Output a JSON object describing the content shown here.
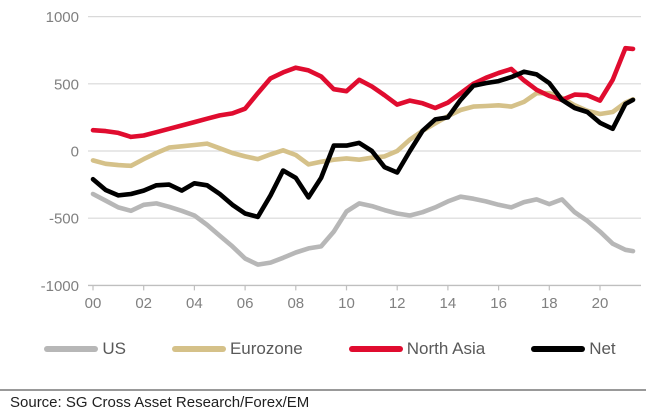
{
  "source": {
    "text": "Source: SG Cross Asset Research/Forex/EM"
  },
  "chart_data": {
    "type": "line",
    "title": "",
    "xlabel": "",
    "ylabel": "",
    "ylim": [
      -1000,
      1000
    ],
    "y_ticks": [
      1000,
      500,
      0,
      -500,
      -1000
    ],
    "y_tick_labels": [
      "1000",
      "500",
      "0",
      "-500",
      "-1000"
    ],
    "x_tick_positions": [
      0,
      2,
      4,
      6,
      8,
      10,
      12,
      14,
      16,
      18,
      20
    ],
    "x_tick_labels": [
      "00",
      "02",
      "04",
      "06",
      "08",
      "10",
      "12",
      "14",
      "16",
      "18",
      "20"
    ],
    "grid": "horizontal",
    "legend_position": "bottom",
    "x": [
      0,
      0.5,
      1,
      1.5,
      2,
      2.5,
      3,
      3.5,
      4,
      4.5,
      5,
      5.5,
      6,
      6.5,
      7,
      7.5,
      8,
      8.5,
      9,
      9.5,
      10,
      10.5,
      11,
      11.5,
      12,
      12.5,
      13,
      13.5,
      14,
      14.5,
      15,
      15.5,
      16,
      16.5,
      17,
      17.5,
      18,
      18.5,
      19,
      19.5,
      20,
      20.5,
      21,
      21.3
    ],
    "series": [
      {
        "name": "US",
        "color": "#b7b7b7",
        "values": [
          -320,
          -370,
          -420,
          -445,
          -400,
          -390,
          -415,
          -445,
          -480,
          -550,
          -630,
          -710,
          -800,
          -845,
          -830,
          -795,
          -755,
          -725,
          -710,
          -600,
          -450,
          -390,
          -410,
          -440,
          -465,
          -480,
          -455,
          -420,
          -375,
          -340,
          -355,
          -375,
          -400,
          -420,
          -380,
          -360,
          -395,
          -360,
          -455,
          -520,
          -600,
          -690,
          -735,
          -745
        ]
      },
      {
        "name": "Eurozone",
        "color": "#d5c189",
        "values": [
          -70,
          -95,
          -105,
          -110,
          -60,
          -15,
          25,
          35,
          45,
          55,
          20,
          -15,
          -40,
          -60,
          -25,
          5,
          -30,
          -100,
          -80,
          -65,
          -55,
          -65,
          -50,
          -40,
          0,
          85,
          150,
          205,
          260,
          305,
          330,
          335,
          340,
          330,
          365,
          430,
          430,
          395,
          340,
          300,
          275,
          290,
          360,
          385
        ]
      },
      {
        "name": "North Asia",
        "color": "#e00c2f",
        "values": [
          155,
          148,
          135,
          105,
          115,
          140,
          165,
          190,
          215,
          240,
          265,
          280,
          315,
          430,
          540,
          585,
          620,
          600,
          555,
          460,
          445,
          530,
          480,
          415,
          345,
          375,
          355,
          320,
          360,
          430,
          500,
          545,
          580,
          610,
          525,
          455,
          410,
          380,
          420,
          415,
          375,
          530,
          765,
          760
        ]
      },
      {
        "name": "Net",
        "color": "#000000",
        "values": [
          -210,
          -290,
          -330,
          -320,
          -295,
          -255,
          -250,
          -295,
          -240,
          -255,
          -320,
          -400,
          -465,
          -490,
          -330,
          -145,
          -200,
          -345,
          -200,
          40,
          40,
          60,
          0,
          -120,
          -160,
          0,
          150,
          235,
          250,
          380,
          485,
          505,
          520,
          550,
          590,
          570,
          505,
          380,
          320,
          290,
          210,
          165,
          350,
          380
        ]
      }
    ]
  },
  "style": {
    "grid_color": "#d9d9d9",
    "axis_color": "#bfbfbf",
    "tick_label_color": "#808080",
    "legend_text_color": "#595959",
    "divider_color": "#999999"
  }
}
